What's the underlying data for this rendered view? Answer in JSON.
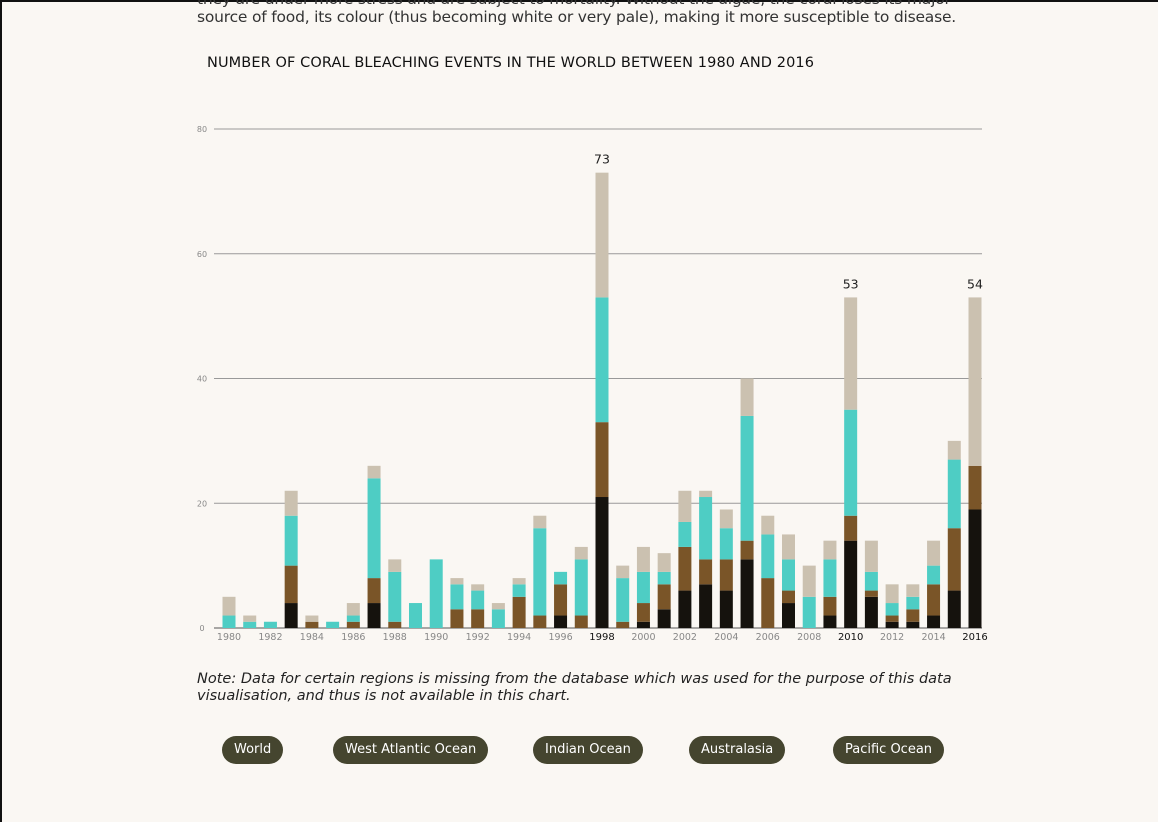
{
  "intro": {
    "line1": "they are under more stress and are subject to mortality. Without the algae, the coral loses its major",
    "line2": "source of food, its colour (thus becoming white or very pale), making it more susceptible to disease."
  },
  "chart_data": {
    "type": "bar",
    "stacked": true,
    "title": "NUMBER OF CORAL BLEACHING EVENTS IN THE WORLD BETWEEN 1980 AND 2016",
    "xlabel": "",
    "ylabel": "",
    "ylim": [
      0,
      80
    ],
    "yticks": [
      0,
      20,
      40,
      60,
      80
    ],
    "grid": true,
    "legend": "buttons below chart",
    "categories": [
      "1980",
      "1981",
      "1982",
      "1983",
      "1984",
      "1985",
      "1986",
      "1987",
      "1988",
      "1989",
      "1990",
      "1991",
      "1992",
      "1993",
      "1994",
      "1995",
      "1996",
      "1997",
      "1998",
      "1999",
      "2000",
      "2001",
      "2002",
      "2003",
      "2004",
      "2005",
      "2006",
      "2007",
      "2008",
      "2009",
      "2010",
      "2011",
      "2012",
      "2013",
      "2014",
      "2015",
      "2016"
    ],
    "tick_labels": [
      "1980",
      "1982",
      "1984",
      "1986",
      "1988",
      "1990",
      "1992",
      "1994",
      "1996",
      "1998",
      "2000",
      "2002",
      "2004",
      "2006",
      "2008",
      "2010",
      "2012",
      "2014",
      "2016"
    ],
    "highlight_years": [
      "1998",
      "2010",
      "2016"
    ],
    "series": [
      {
        "color": "#15120d",
        "values": [
          0,
          0,
          0,
          4,
          0,
          0,
          0,
          4,
          0,
          0,
          0,
          0,
          0,
          0,
          0,
          0,
          2,
          0,
          21,
          0,
          1,
          3,
          6,
          7,
          6,
          11,
          0,
          4,
          0,
          2,
          14,
          5,
          1,
          1,
          2,
          6,
          19
        ]
      },
      {
        "color": "#7a5528",
        "values": [
          0,
          0,
          0,
          6,
          1,
          0,
          1,
          4,
          1,
          0,
          0,
          3,
          3,
          0,
          5,
          2,
          5,
          2,
          12,
          1,
          3,
          4,
          7,
          4,
          5,
          3,
          8,
          2,
          0,
          3,
          4,
          1,
          1,
          2,
          5,
          10,
          7
        ]
      },
      {
        "color": "#4ecdc4",
        "values": [
          2,
          1,
          1,
          8,
          0,
          1,
          1,
          16,
          8,
          4,
          11,
          4,
          3,
          3,
          2,
          14,
          2,
          9,
          20,
          7,
          5,
          2,
          4,
          10,
          5,
          20,
          7,
          5,
          5,
          6,
          17,
          3,
          2,
          2,
          3,
          11,
          0
        ]
      },
      {
        "color": "#cbc1b0",
        "values": [
          3,
          1,
          0,
          4,
          1,
          0,
          2,
          2,
          2,
          0,
          0,
          1,
          1,
          1,
          1,
          2,
          0,
          2,
          20,
          2,
          4,
          3,
          5,
          1,
          3,
          6,
          3,
          4,
          5,
          3,
          18,
          5,
          3,
          2,
          4,
          3,
          27
        ]
      }
    ],
    "annotations": [
      {
        "x": "1998",
        "label": "73"
      },
      {
        "x": "2010",
        "label": "53"
      },
      {
        "x": "2016",
        "label": "54"
      }
    ]
  },
  "note": {
    "line1": "Note: Data for certain regions is missing from the database which was used for the purpose of this data",
    "line2": "visualisation, and thus is not available in this chart."
  },
  "regions": [
    {
      "label": "World"
    },
    {
      "label": "West Atlantic Ocean"
    },
    {
      "label": "Indian Ocean"
    },
    {
      "label": "Australasia"
    },
    {
      "label": "Pacific Ocean"
    }
  ],
  "colors": {
    "button_bg": "#45452f",
    "background": "#faf7f3"
  }
}
